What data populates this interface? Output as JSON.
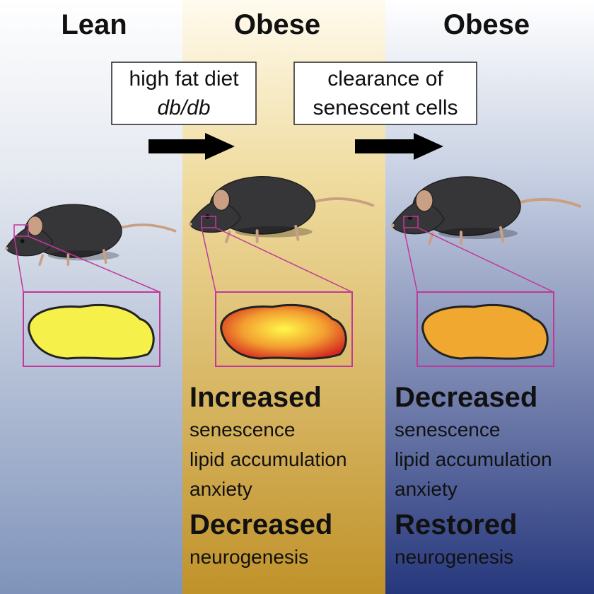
{
  "columns": [
    {
      "title": "Lean"
    },
    {
      "title": "Obese",
      "effects": [
        {
          "heading": "Increased",
          "items": [
            "senescence",
            "lipid accumulation",
            "anxiety"
          ]
        },
        {
          "heading": "Decreased",
          "items": [
            "neurogenesis"
          ]
        }
      ]
    },
    {
      "title": "Obese",
      "effects": [
        {
          "heading": "Decreased",
          "items": [
            "senescence",
            "lipid accumulation",
            "anxiety"
          ]
        },
        {
          "heading": "Restored",
          "items": [
            "neurogenesis"
          ]
        }
      ]
    }
  ],
  "transitions": [
    {
      "lines": [
        "high fat diet",
        "db/db"
      ]
    },
    {
      "lines": [
        "clearance of",
        "senescent cells"
      ]
    }
  ]
}
